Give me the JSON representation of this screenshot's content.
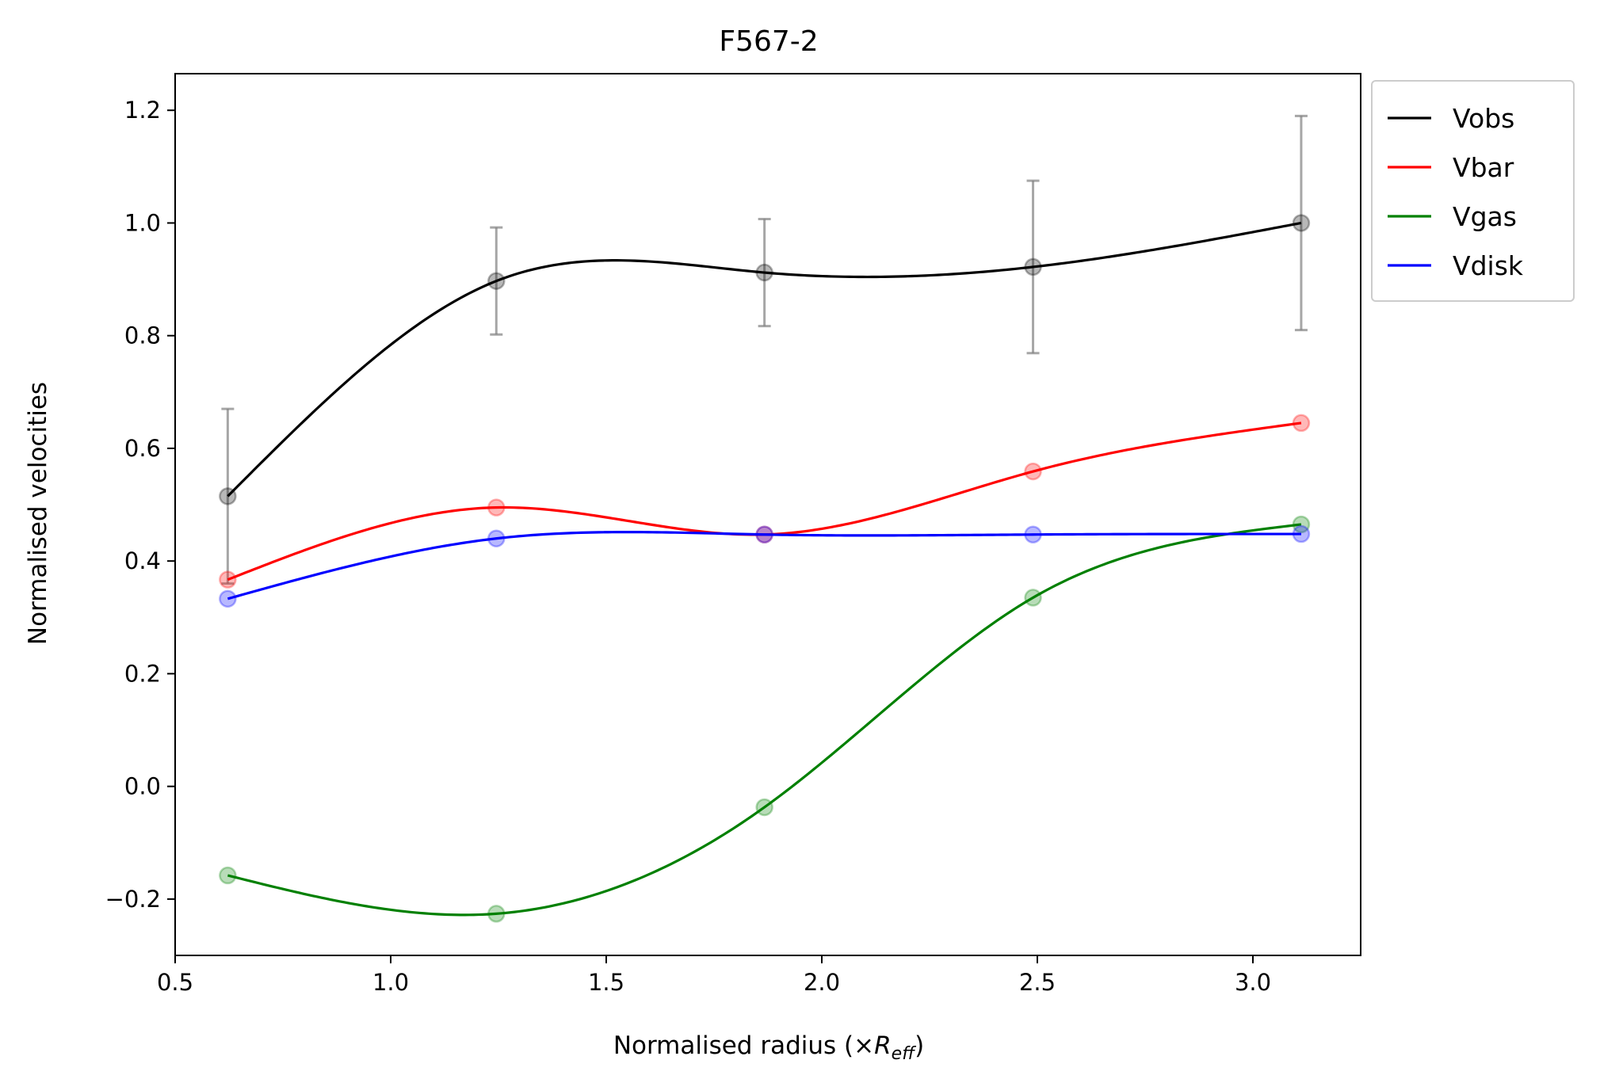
{
  "chart_data": {
    "type": "line",
    "title": "F567-2",
    "xlabel": "Normalised radius (×",
    "xlabel_symbol": "R",
    "xlabel_subscript": "eff",
    "xlabel_suffix": ")",
    "ylabel": "Normalised velocities",
    "xlim": [
      0.5,
      3.25
    ],
    "ylim": [
      -0.3,
      1.265
    ],
    "xticks": [
      0.5,
      1.0,
      1.5,
      2.0,
      2.5,
      3.0
    ],
    "xtick_labels": [
      "0.5",
      "1.0",
      "1.5",
      "2.0",
      "2.5",
      "3.0"
    ],
    "yticks": [
      -0.2,
      0.0,
      0.2,
      0.4,
      0.6,
      0.8,
      1.0,
      1.2
    ],
    "ytick_labels": [
      "−0.2",
      "0.0",
      "0.2",
      "0.4",
      "0.6",
      "0.8",
      "1.0",
      "1.2"
    ],
    "grid": false,
    "legend_position": "outside-top-right",
    "x": [
      0.622,
      1.245,
      1.867,
      2.49,
      3.112
    ],
    "series": [
      {
        "name": "Vobs",
        "color": "#000000",
        "values": [
          0.515,
          0.897,
          0.912,
          0.922,
          1.0
        ],
        "errors": [
          0.155,
          0.095,
          0.095,
          0.153,
          0.19
        ]
      },
      {
        "name": "Vbar",
        "color": "#ff0000",
        "values": [
          0.367,
          0.495,
          0.447,
          0.559,
          0.645
        ]
      },
      {
        "name": "Vgas",
        "color": "#008000",
        "values": [
          -0.158,
          -0.226,
          -0.037,
          0.335,
          0.465
        ]
      },
      {
        "name": "Vdisk",
        "color": "#0000ff",
        "values": [
          0.333,
          0.44,
          0.447,
          0.447,
          0.448
        ]
      }
    ]
  }
}
